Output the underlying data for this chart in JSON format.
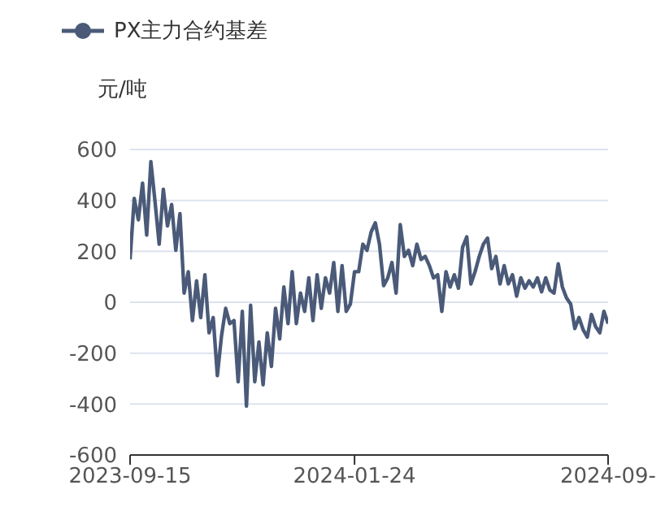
{
  "chart_data": {
    "type": "line",
    "ylabel": "元/吨",
    "categories": [
      "2023-09-15",
      null,
      null,
      null,
      null,
      null,
      null,
      null,
      null,
      null,
      null,
      null,
      null,
      null,
      null,
      null,
      null,
      null,
      null,
      null,
      null,
      null,
      null,
      null,
      null,
      null,
      null,
      null,
      null,
      null,
      null,
      null,
      null,
      null,
      null,
      null,
      null,
      null,
      null,
      null,
      null,
      null,
      null,
      null,
      null,
      null,
      null,
      null,
      null,
      null,
      null,
      null,
      null,
      null,
      "2024-01-24",
      null,
      null,
      null,
      null,
      null,
      null,
      null,
      null,
      null,
      null,
      null,
      null,
      null,
      null,
      null,
      null,
      null,
      null,
      null,
      null,
      null,
      null,
      null,
      null,
      null,
      null,
      null,
      null,
      null,
      null,
      null,
      null,
      null,
      null,
      null,
      null,
      null,
      null,
      null,
      null,
      null,
      null,
      null,
      null,
      null,
      null,
      null,
      null,
      null,
      null,
      null,
      null,
      null,
      null,
      null,
      null,
      null,
      null,
      null,
      null,
      "2024-09-"
    ],
    "series": [
      {
        "name": "PX主力合约基差",
        "color": "#4a5a78",
        "values": [
          168,
          408,
          324,
          468,
          264,
          552,
          396,
          228,
          444,
          300,
          384,
          204,
          348,
          36,
          120,
          -72,
          84,
          -60,
          108,
          -120,
          -60,
          -288,
          -132,
          -24,
          -84,
          -72,
          -312,
          -36,
          -408,
          -12,
          -312,
          -156,
          -324,
          -120,
          -252,
          -24,
          -144,
          60,
          -84,
          120,
          -84,
          36,
          -36,
          96,
          -72,
          108,
          -24,
          96,
          36,
          156,
          -36,
          144,
          -36,
          -7,
          120,
          120,
          228,
          204,
          276,
          312,
          228,
          65,
          96,
          156,
          36,
          305,
          180,
          204,
          144,
          228,
          168,
          180,
          144,
          96,
          108,
          -36,
          120,
          60,
          108,
          55,
          216,
          257,
          72,
          120,
          180,
          228,
          252,
          132,
          180,
          72,
          144,
          72,
          108,
          24,
          96,
          55,
          84,
          60,
          96,
          41,
          96,
          48,
          36,
          151,
          60,
          17,
          -7,
          -103,
          -60,
          -108,
          -137,
          -48,
          -96,
          -120,
          -36,
          -84
        ]
      }
    ],
    "ylim": [
      -600,
      600
    ],
    "yticks": [
      -600,
      -400,
      -200,
      0,
      200,
      400,
      600
    ],
    "grid": "y",
    "legend": "top left",
    "marker": "none",
    "line_style": "solid"
  }
}
